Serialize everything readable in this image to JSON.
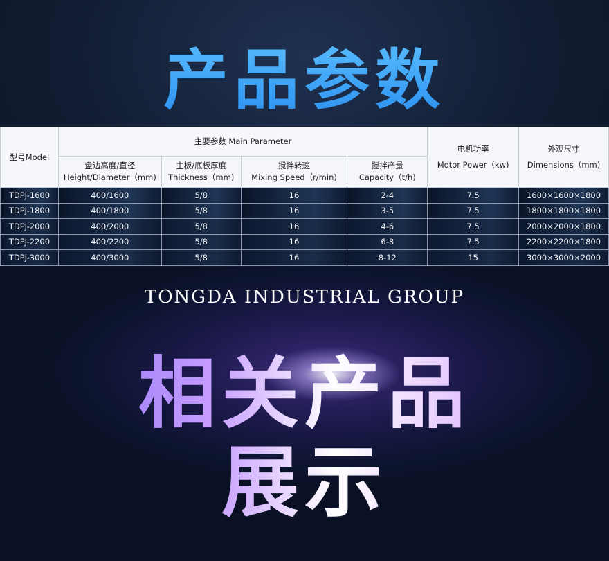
{
  "title": "产品参数",
  "table": {
    "model_header": "型号Model",
    "main_parameter": "主要参数 Main Parameter",
    "sub_headers": [
      {
        "cn": "盘边高度/直径",
        "en": "Height/Diameter（mm)"
      },
      {
        "cn": "主板/底板厚度",
        "en": "Thickness（mm)"
      },
      {
        "cn": "搅拌转速",
        "en": "Mixing Speed（r/min)"
      },
      {
        "cn": "搅拌产量",
        "en": "Capacity（t/h)"
      }
    ],
    "motor": {
      "cn": "电机功率",
      "en": "Motor Power（kw)"
    },
    "dimensions": {
      "cn": "外观尺寸",
      "en": "Dimensions（mm)"
    },
    "rows": [
      [
        "TDPJ-1600",
        "400/1600",
        "5/8",
        "16",
        "2-4",
        "7.5",
        "1600×1600×1800"
      ],
      [
        "TDPJ-1800",
        "400/1800",
        "5/8",
        "16",
        "3-5",
        "7.5",
        "1800×1800×1800"
      ],
      [
        "TDPJ-2000",
        "400/2000",
        "5/8",
        "16",
        "4-6",
        "7.5",
        "2000×2000×1800"
      ],
      [
        "TDPJ-2200",
        "400/2200",
        "5/8",
        "16",
        "6-8",
        "7.5",
        "2200×2200×1800"
      ],
      [
        "TDPJ-3000",
        "400/3000",
        "5/8",
        "16",
        "8-12",
        "15",
        "3000×3000×2000"
      ]
    ]
  },
  "brand": "TONGDA INDUSTRIAL GROUP",
  "related_line1": "相关产品",
  "related_line2": "展示"
}
